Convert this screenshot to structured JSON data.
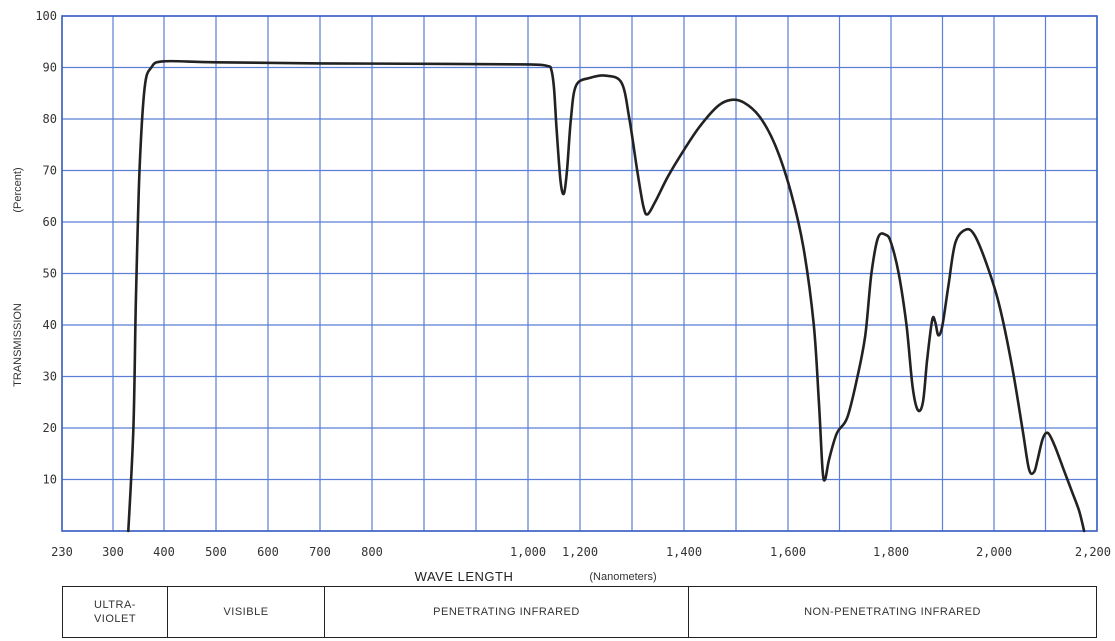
{
  "chart_data": {
    "type": "line",
    "ylabel": "TRANSMISSION",
    "ylabel_unit": "(Percent)",
    "xlabel": "WAVE LENGTH",
    "xlabel_unit": "(Nanometers)",
    "ylim": [
      0,
      100
    ],
    "y_ticks": [
      10,
      20,
      30,
      40,
      50,
      60,
      70,
      80,
      90,
      100
    ],
    "x_ticks": [
      {
        "label": "230",
        "value": 230
      },
      {
        "label": "300",
        "value": 300
      },
      {
        "label": "400",
        "value": 400
      },
      {
        "label": "500",
        "value": 500
      },
      {
        "label": "600",
        "value": 600
      },
      {
        "label": "700",
        "value": 700
      },
      {
        "label": "800",
        "value": 800
      },
      {
        "label": "1,000",
        "value": 1000
      },
      {
        "label": "1,200",
        "value": 1200
      },
      {
        "label": "1,400",
        "value": 1400
      },
      {
        "label": "1,600",
        "value": 1600
      },
      {
        "label": "1,800",
        "value": 1800
      },
      {
        "label": "2,000",
        "value": 2000
      },
      {
        "label": "2,200",
        "value": 2200
      }
    ],
    "grid": true,
    "series": [
      {
        "color": "#222222",
        "points": [
          [
            330,
            0
          ],
          [
            340,
            20
          ],
          [
            345,
            45
          ],
          [
            352,
            70
          ],
          [
            362,
            86
          ],
          [
            375,
            90
          ],
          [
            400,
            91.2
          ],
          [
            500,
            91
          ],
          [
            700,
            90.8
          ],
          [
            900,
            90.7
          ],
          [
            1000,
            90.6
          ],
          [
            1075,
            90.3
          ],
          [
            1090,
            89.5
          ],
          [
            1100,
            86
          ],
          [
            1110,
            78
          ],
          [
            1125,
            68
          ],
          [
            1138,
            65.5
          ],
          [
            1150,
            70
          ],
          [
            1165,
            80
          ],
          [
            1185,
            86.5
          ],
          [
            1220,
            88
          ],
          [
            1250,
            88.4
          ],
          [
            1280,
            87
          ],
          [
            1295,
            80
          ],
          [
            1310,
            70
          ],
          [
            1322,
            63
          ],
          [
            1330,
            61.5
          ],
          [
            1345,
            64
          ],
          [
            1370,
            69
          ],
          [
            1400,
            74
          ],
          [
            1430,
            78.5
          ],
          [
            1465,
            82.5
          ],
          [
            1490,
            83.7
          ],
          [
            1515,
            83.2
          ],
          [
            1545,
            80.5
          ],
          [
            1575,
            75
          ],
          [
            1605,
            66
          ],
          [
            1630,
            55
          ],
          [
            1650,
            40
          ],
          [
            1660,
            25
          ],
          [
            1667,
            12
          ],
          [
            1672,
            10
          ],
          [
            1680,
            14
          ],
          [
            1695,
            19
          ],
          [
            1715,
            22
          ],
          [
            1735,
            30
          ],
          [
            1750,
            38
          ],
          [
            1762,
            50
          ],
          [
            1775,
            57
          ],
          [
            1790,
            57.5
          ],
          [
            1800,
            56
          ],
          [
            1815,
            50
          ],
          [
            1830,
            40
          ],
          [
            1842,
            28
          ],
          [
            1852,
            23.5
          ],
          [
            1862,
            25
          ],
          [
            1870,
            33
          ],
          [
            1880,
            41
          ],
          [
            1886,
            40.5
          ],
          [
            1892,
            38
          ],
          [
            1900,
            40
          ],
          [
            1912,
            48
          ],
          [
            1925,
            56
          ],
          [
            1945,
            58.5
          ],
          [
            1962,
            57.5
          ],
          [
            1985,
            52
          ],
          [
            2010,
            44
          ],
          [
            2035,
            32
          ],
          [
            2055,
            20
          ],
          [
            2068,
            12
          ],
          [
            2078,
            11.5
          ],
          [
            2085,
            14
          ],
          [
            2095,
            18
          ],
          [
            2105,
            19
          ],
          [
            2118,
            16.5
          ],
          [
            2135,
            12
          ],
          [
            2150,
            8
          ],
          [
            2165,
            4
          ],
          [
            2175,
            0
          ]
        ]
      }
    ]
  },
  "bands": [
    {
      "label": "ULTRA-\nVIOLET"
    },
    {
      "label": "VISIBLE"
    },
    {
      "label": "PENETRATING   INFRARED"
    },
    {
      "label": "NON-PENETRATING    INFRARED"
    }
  ]
}
